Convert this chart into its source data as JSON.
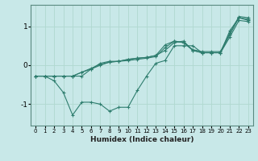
{
  "xlabel": "Humidex (Indice chaleur)",
  "bg_color": "#c8e8e8",
  "line_color": "#2e7d6e",
  "grid_color": "#b0d8d0",
  "xlim": [
    -0.5,
    23.5
  ],
  "ylim": [
    -1.55,
    1.55
  ],
  "yticks": [
    -1,
    0,
    1
  ],
  "xticks": [
    0,
    1,
    2,
    3,
    4,
    5,
    6,
    7,
    8,
    9,
    10,
    11,
    12,
    13,
    14,
    15,
    16,
    17,
    18,
    19,
    20,
    21,
    22,
    23
  ],
  "lines": [
    {
      "x": [
        0,
        1,
        2,
        3,
        4,
        5,
        6,
        7,
        8,
        9,
        10,
        11,
        12,
        13,
        14,
        15,
        16,
        17,
        18,
        19,
        20,
        21,
        22,
        23
      ],
      "y": [
        -0.28,
        -0.28,
        -0.4,
        -0.7,
        -1.28,
        -0.95,
        -0.95,
        -1.0,
        -1.18,
        -1.08,
        -1.08,
        -0.65,
        -0.28,
        0.05,
        0.12,
        0.5,
        0.5,
        0.5,
        0.32,
        0.32,
        0.32,
        0.88,
        1.22,
        1.15
      ]
    },
    {
      "x": [
        0,
        1,
        2,
        3,
        4,
        5,
        6,
        7,
        8,
        9,
        10,
        11,
        12,
        13,
        14,
        15,
        16,
        17,
        18,
        19,
        20,
        21,
        22,
        23
      ],
      "y": [
        -0.28,
        -0.28,
        -0.28,
        -0.28,
        -0.28,
        -0.28,
        -0.1,
        0.05,
        0.1,
        0.1,
        0.12,
        0.15,
        0.18,
        0.22,
        0.45,
        0.62,
        0.58,
        0.4,
        0.35,
        0.35,
        0.35,
        0.82,
        1.25,
        1.22
      ]
    },
    {
      "x": [
        0,
        1,
        2,
        3,
        4,
        5,
        6,
        7,
        8,
        9,
        10,
        11,
        12,
        13,
        14,
        15,
        16,
        17,
        18,
        19,
        20,
        21,
        22,
        23
      ],
      "y": [
        -0.28,
        -0.28,
        -0.28,
        -0.28,
        -0.28,
        -0.18,
        -0.08,
        0.02,
        0.08,
        0.1,
        0.15,
        0.18,
        0.2,
        0.25,
        0.38,
        0.58,
        0.62,
        0.38,
        0.32,
        0.32,
        0.32,
        0.78,
        1.22,
        1.18
      ]
    },
    {
      "x": [
        0,
        1,
        2,
        3,
        4,
        5,
        6,
        7,
        8,
        9,
        10,
        11,
        12,
        13,
        14,
        15,
        16,
        17,
        18,
        19,
        20,
        21,
        22,
        23
      ],
      "y": [
        -0.28,
        -0.28,
        -0.28,
        -0.28,
        -0.28,
        -0.18,
        -0.1,
        0.0,
        0.08,
        0.1,
        0.15,
        0.18,
        0.2,
        0.25,
        0.52,
        0.62,
        0.58,
        0.38,
        0.32,
        0.32,
        0.32,
        0.72,
        1.15,
        1.12
      ]
    }
  ]
}
